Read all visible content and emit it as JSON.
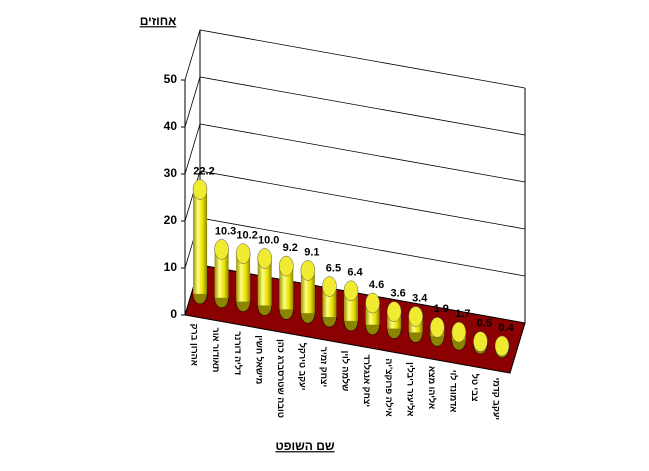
{
  "chart_data": {
    "type": "bar3d",
    "ylabel": "אחוזים",
    "xlabel": "שם השופט",
    "categories": [
      "אהרון ברק",
      "תאודור אור",
      "דליה דורנר",
      "מישאל חשין",
      "טובה שטרסברג כהן",
      "יעקב טירקל",
      "יצחק זמיר",
      "שלמה לוין",
      "יצחק אנגלרד",
      "אילה פרוקצ'יה",
      "אליעזר ריבלין",
      "אליהו מצא",
      "אדמונד לוי",
      "צבי טל",
      "יעקב קדמי"
    ],
    "values": [
      22.2,
      10.3,
      10.2,
      10.0,
      9.2,
      9.1,
      6.5,
      6.4,
      4.6,
      3.6,
      3.4,
      1.9,
      1.7,
      0.5,
      0.4
    ],
    "value_labels": [
      "22.2",
      "10.3",
      "10.2",
      "10.0",
      "9.2",
      "9.1",
      "6.5",
      "6.4",
      "4.6",
      "3.6",
      "3.4",
      "1.9",
      "1.7",
      "0.5",
      "0.4"
    ],
    "color": "#e8e000",
    "floor_color": "#8b0000",
    "ylim": [
      0,
      50
    ],
    "yticks": [
      0,
      10,
      20,
      30,
      40,
      50
    ],
    "grid": true
  }
}
